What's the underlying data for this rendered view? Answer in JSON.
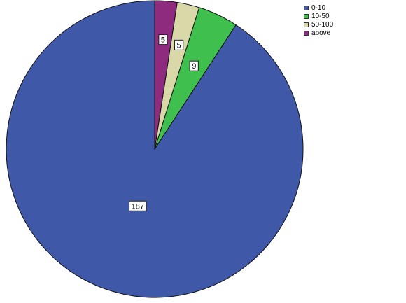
{
  "chart_data": {
    "type": "pie",
    "categories": [
      "0-10",
      "10-50",
      "50-100",
      "above"
    ],
    "values": [
      187,
      9,
      5,
      5
    ],
    "slice_labels": [
      "187",
      "9",
      "5",
      "5"
    ],
    "colors": [
      "#3f58a8",
      "#3fbf4d",
      "#d8d8a8",
      "#8e2b7f"
    ],
    "start": "12 o'clock",
    "direction": "counterclockwise",
    "legend": {
      "placement": "top-right",
      "entries": [
        "0-10",
        "10-50",
        "50-100",
        "above"
      ]
    }
  }
}
